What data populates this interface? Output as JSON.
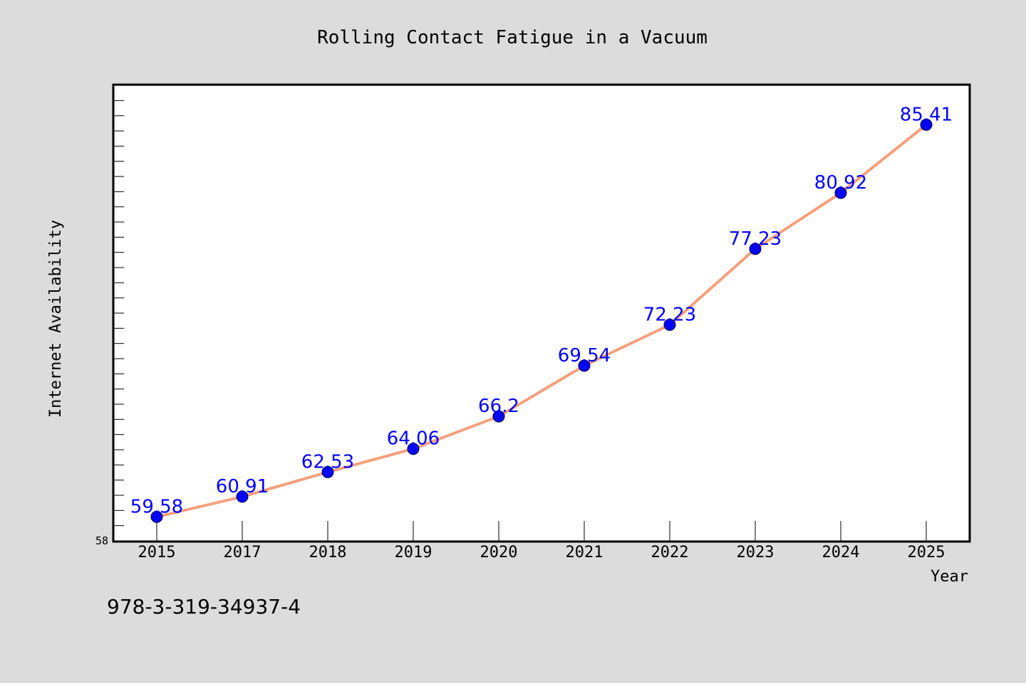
{
  "colors": {
    "background": "#dcdcdc",
    "plot_background": "#ffffff",
    "frame": "#000000",
    "line": "#f4a07c",
    "marker": "#0000ff",
    "label": "#0000ff",
    "text": "#000000"
  },
  "isbn": "978-3-319-34937-4",
  "chart_data": {
    "type": "line",
    "title": "Rolling Contact Fatigue in a Vacuum",
    "xlabel": "Year",
    "ylabel": "Internet Availability",
    "categories": [
      "2015",
      "2017",
      "2018",
      "2019",
      "2020",
      "2021",
      "2022",
      "2023",
      "2024",
      "2025"
    ],
    "series": [
      {
        "values": [
          59.58,
          60.91,
          62.53,
          64.06,
          66.2,
          69.54,
          72.23,
          77.23,
          80.92,
          85.41
        ],
        "labels": [
          "59.58",
          "60.91",
          "62.53",
          "64.06",
          "66.2",
          "69.54",
          "72.23",
          "77.23",
          "80.92",
          "85.41"
        ]
      }
    ],
    "ylim": [
      58,
      88
    ],
    "y_tick_labels": [
      "58"
    ],
    "grid": false,
    "legend": "none"
  }
}
